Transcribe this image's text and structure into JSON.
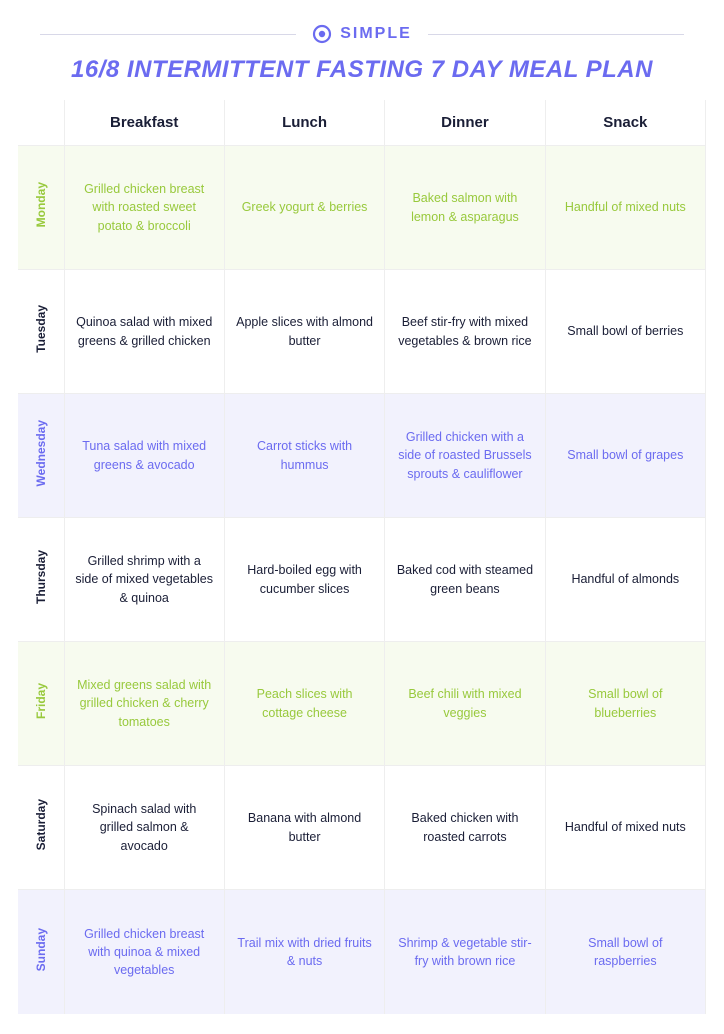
{
  "brand": "SIMPLE",
  "title": "16/8 INTERMITTENT FASTING 7 DAY MEAL PLAN",
  "colors": {
    "accent_purple": "#6b6bf0",
    "accent_green": "#98c93c",
    "text_dark": "#1a1e36",
    "row_tint_green": "#f7fbef",
    "row_tint_purple": "#f2f2fd",
    "border": "#eeeeee"
  },
  "columns": [
    "Breakfast",
    "Lunch",
    "Dinner",
    "Snack"
  ],
  "rows": [
    {
      "day": "Monday",
      "text_color": "#98c93c",
      "bg_color": "#f7fbef",
      "meals": [
        "Grilled chicken breast with roasted sweet potato & broccoli",
        "Greek yogurt & berries",
        "Baked salmon with lemon & asparagus",
        "Handful of mixed nuts"
      ]
    },
    {
      "day": "Tuesday",
      "text_color": "#1a1e36",
      "bg_color": "#ffffff",
      "meals": [
        "Quinoa salad with mixed greens & grilled chicken",
        "Apple slices with almond butter",
        "Beef stir-fry with mixed vegetables & brown rice",
        "Small bowl of berries"
      ]
    },
    {
      "day": "Wednesday",
      "text_color": "#6b6bf0",
      "bg_color": "#f2f2fd",
      "meals": [
        "Tuna salad with mixed greens & avocado",
        "Carrot sticks with hummus",
        "Grilled chicken with a side of roasted Brussels sprouts & cauliflower",
        "Small bowl of grapes"
      ]
    },
    {
      "day": "Thursday",
      "text_color": "#1a1e36",
      "bg_color": "#ffffff",
      "meals": [
        "Grilled shrimp with a side of mixed vegetables & quinoa",
        "Hard-boiled egg with cucumber slices",
        "Baked cod with steamed green beans",
        "Handful of almonds"
      ]
    },
    {
      "day": "Friday",
      "text_color": "#98c93c",
      "bg_color": "#f7fbef",
      "meals": [
        "Mixed greens salad with grilled chicken & cherry tomatoes",
        "Peach slices with cottage cheese",
        "Beef chili with mixed veggies",
        "Small bowl of blueberries"
      ]
    },
    {
      "day": "Saturday",
      "text_color": "#1a1e36",
      "bg_color": "#ffffff",
      "meals": [
        "Spinach salad with grilled salmon & avocado",
        "Banana with almond butter",
        "Baked chicken with roasted carrots",
        "Handful of mixed nuts"
      ]
    },
    {
      "day": "Sunday",
      "text_color": "#6b6bf0",
      "bg_color": "#f2f2fd",
      "meals": [
        "Grilled chicken breast with quinoa & mixed vegetables",
        "Trail mix with dried fruits & nuts",
        "Shrimp & vegetable stir-fry with brown rice",
        "Small bowl of raspberries"
      ]
    }
  ]
}
